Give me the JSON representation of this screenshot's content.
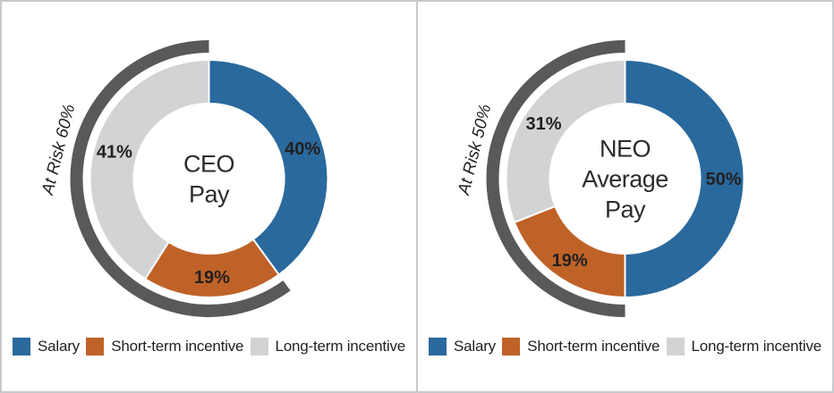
{
  "colors": {
    "salary": "#2A699D",
    "short_term": "#BF6228",
    "long_term": "#D2D3D5",
    "at_risk_arc": "#58595B",
    "label_text": "#231F20",
    "center_text": "#2B2C2E",
    "frame_border": "#C8CBCD"
  },
  "legend": {
    "items": [
      {
        "key": "salary",
        "label": "Salary"
      },
      {
        "key": "short_term",
        "label": "Short-term incentive"
      },
      {
        "key": "long_term",
        "label": "Long-term incentive"
      }
    ]
  },
  "chart_data": [
    {
      "type": "pie",
      "variant": "donut",
      "title": "CEO Pay",
      "title_lines": [
        "CEO",
        "Pay"
      ],
      "at_risk_label": "At Risk 60%",
      "at_risk_percent": 60,
      "series": [
        {
          "name": "Salary",
          "value": 40,
          "label": "40%",
          "color_key": "salary"
        },
        {
          "name": "Short-term incentive",
          "value": 19,
          "label": "19%",
          "color_key": "short_term"
        },
        {
          "name": "Long-term incentive",
          "value": 41,
          "label": "41%",
          "color_key": "long_term"
        }
      ]
    },
    {
      "type": "pie",
      "variant": "donut",
      "title": "NEO Average Pay",
      "title_lines": [
        "NEO",
        "Average",
        "Pay"
      ],
      "at_risk_label": "At Risk 50%",
      "at_risk_percent": 50,
      "series": [
        {
          "name": "Salary",
          "value": 50,
          "label": "50%",
          "color_key": "salary"
        },
        {
          "name": "Short-term incentive",
          "value": 19,
          "label": "19%",
          "color_key": "short_term"
        },
        {
          "name": "Long-term incentive",
          "value": 31,
          "label": "31%",
          "color_key": "long_term"
        }
      ]
    }
  ]
}
